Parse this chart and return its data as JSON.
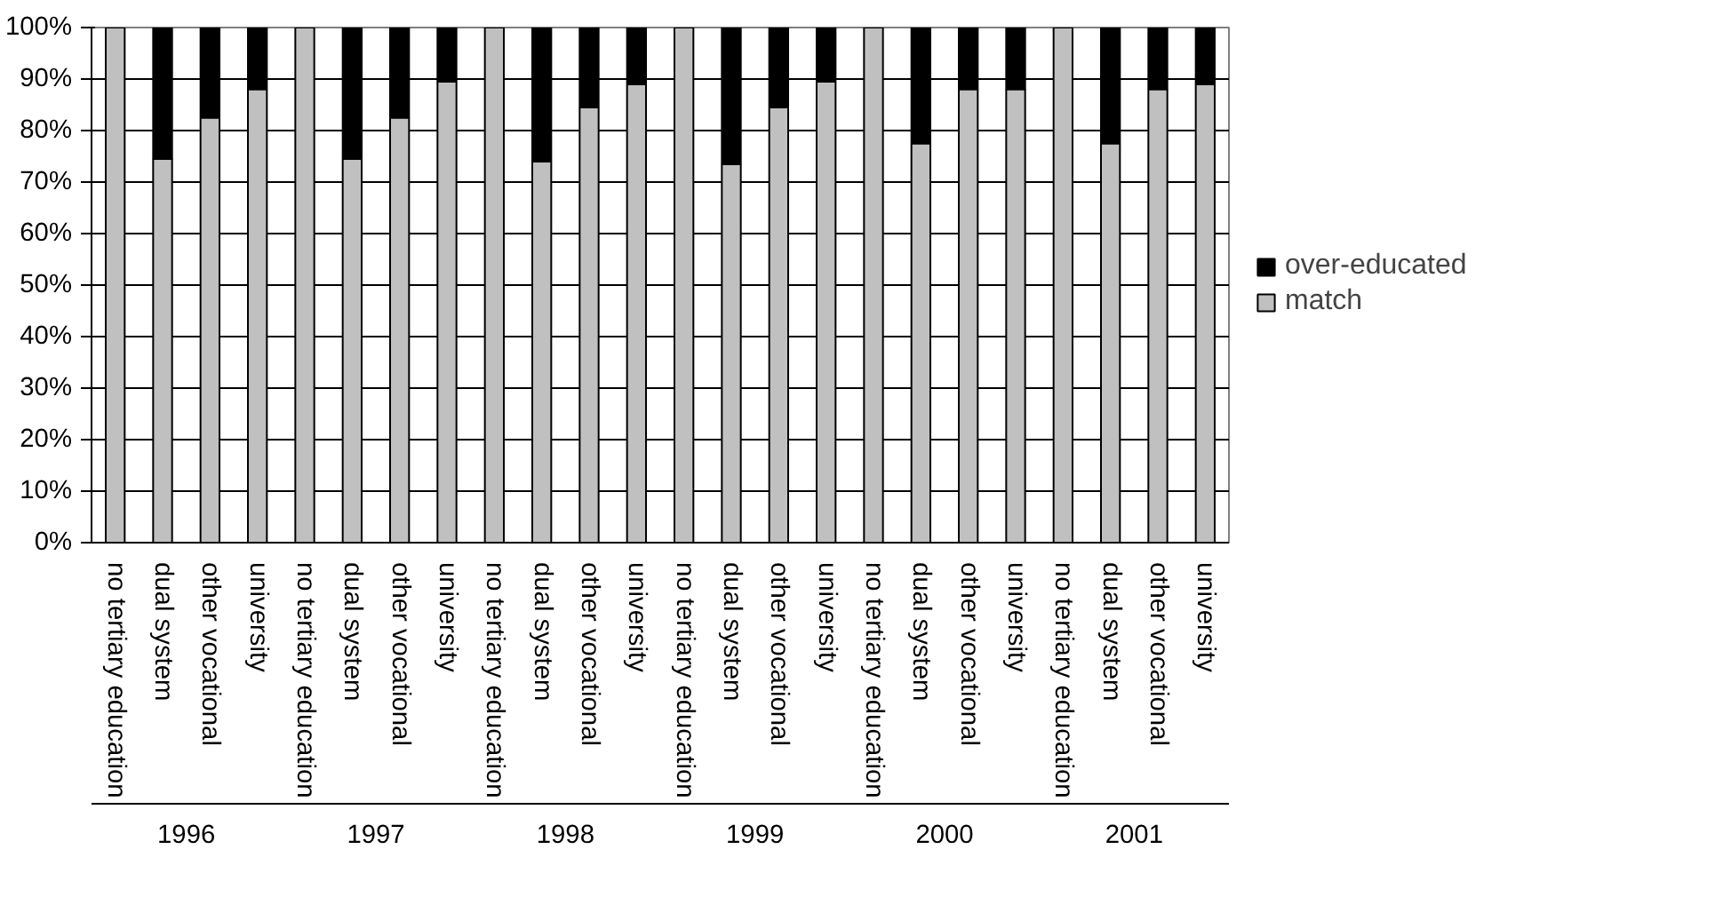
{
  "chart_data": {
    "type": "bar",
    "stacked": true,
    "categories": [
      "no tertiary education",
      "dual system",
      "other vocational",
      "university",
      "no tertiary education",
      "dual system",
      "other vocational",
      "university",
      "no tertiary education",
      "dual system",
      "other vocational",
      "university",
      "no tertiary education",
      "dual system",
      "other vocational",
      "university",
      "no tertiary education",
      "dual system",
      "other vocational",
      "university",
      "no tertiary education",
      "dual system",
      "other vocational",
      "university"
    ],
    "series": [
      {
        "name": "match",
        "color": "#c0c0c0",
        "values": [
          100,
          74.5,
          82.5,
          88,
          100,
          74.5,
          82.5,
          89.5,
          100,
          74,
          84.5,
          89,
          100,
          73.5,
          84.5,
          89.5,
          100,
          77.5,
          88,
          88,
          100,
          77.5,
          88,
          89
        ]
      },
      {
        "name": "over-educated",
        "color": "#000000",
        "values": [
          0,
          25.5,
          17.5,
          12,
          0,
          25.5,
          17.5,
          10.5,
          0,
          26,
          15.5,
          11,
          0,
          26.5,
          15.5,
          10.5,
          0,
          22.5,
          12,
          12,
          0,
          22.5,
          12,
          11
        ]
      }
    ],
    "ylim": [
      0,
      100
    ],
    "yticks": [
      {
        "value": 0,
        "label": "0%"
      },
      {
        "value": 10,
        "label": "10%"
      },
      {
        "value": 20,
        "label": "20%"
      },
      {
        "value": 30,
        "label": "30%"
      },
      {
        "value": 40,
        "label": "40%"
      },
      {
        "value": 50,
        "label": "50%"
      },
      {
        "value": 60,
        "label": "60%"
      },
      {
        "value": 70,
        "label": "70%"
      },
      {
        "value": 80,
        "label": "80%"
      },
      {
        "value": 90,
        "label": "90%"
      },
      {
        "value": 100,
        "label": "100%"
      }
    ],
    "grid": "y",
    "legend": "right",
    "annotations": [
      "1996",
      "1997",
      "1998",
      "1999",
      "2000",
      "2001"
    ]
  }
}
